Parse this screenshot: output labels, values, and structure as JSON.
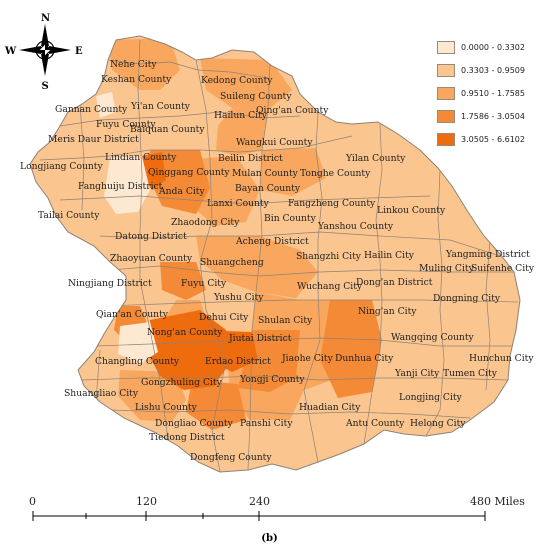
{
  "colors": {
    "class1": "#fde9d2",
    "class2": "#fbc58f",
    "class3": "#f9a75e",
    "class4": "#f48a35",
    "class5": "#ef6c0e",
    "border": "#8e8276"
  },
  "compass": {
    "north": "N",
    "south": "S",
    "east": "E",
    "west": "W"
  },
  "legend": [
    {
      "label": "0.0000 - 0.3302",
      "color_key": "class1"
    },
    {
      "label": "0.3303 - 0.9509",
      "color_key": "class2"
    },
    {
      "label": "0.9510 - 1.7585",
      "color_key": "class3"
    },
    {
      "label": "1.7586 - 3.0504",
      "color_key": "class4"
    },
    {
      "label": "3.0505 - 6.6102",
      "color_key": "class5"
    }
  ],
  "scale_bar": {
    "labels": [
      "0",
      "120",
      "240",
      "480 Miles"
    ]
  },
  "figure_label": "(b)",
  "places": [
    "Nehe City",
    "Keshan County",
    "Kedong County",
    "Gannan County",
    "Yi'an County",
    "Suileng County",
    "Hailun City",
    "Qing'an County",
    "Fuyu County",
    "Baiquan County",
    "Meris Daur District",
    "Lindian County",
    "Wangkui County",
    "Longjiang County",
    "Beilin District",
    "Yilan County",
    "Fanghuiju District",
    "Qinggang County",
    "Mulan County",
    "Tonghe County",
    "Anda City",
    "Bayan County",
    "Tailai County",
    "Lanxi County",
    "Fangzheng County",
    "Zhaodong City",
    "Linkou County",
    "Datong District",
    "Bin County",
    "Yanshou County",
    "Acheng District",
    "Zhaoyuan County",
    "Shuangcheng",
    "Shangzhi City",
    "Hailin City",
    "Yangming District",
    "Muling City",
    "Suifenhe City",
    "Ningjiang District",
    "Fuyu City",
    "Wuchang City",
    "Dong'an District",
    "Yushu City",
    "Dongning City",
    "Qian'an County",
    "Dehui City",
    "Ning'an City",
    "Shulan City",
    "Nong'an County",
    "Jiutai District",
    "Wangqing County",
    "Changling County",
    "Erdao District",
    "Jiaohe City",
    "Dunhua City",
    "Hunchun City",
    "Gongzhuling City",
    "Yongji County",
    "Yanji City",
    "Tumen City",
    "Shuangliao City",
    "Lishu County",
    "Longjing City",
    "Huadian City",
    "Dongliao County",
    "Panshi City",
    "Antu County",
    "Helong City",
    "Tiedong District",
    "Dongfeng County"
  ]
}
